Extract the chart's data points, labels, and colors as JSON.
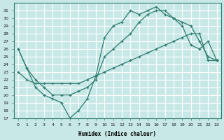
{
  "background_color": "#c8e8e8",
  "grid_color": "#ffffff",
  "line_color": "#2e7d6e",
  "xlabel": "Humidex (Indice chaleur)",
  "xlim": [
    -0.5,
    23.5
  ],
  "ylim": [
    17,
    32
  ],
  "yticks": [
    17,
    18,
    19,
    20,
    21,
    22,
    23,
    24,
    25,
    26,
    27,
    28,
    29,
    30,
    31
  ],
  "xticks": [
    0,
    1,
    2,
    3,
    4,
    5,
    6,
    7,
    8,
    9,
    10,
    11,
    12,
    13,
    14,
    15,
    16,
    17,
    18,
    19,
    20,
    21,
    22,
    23
  ],
  "line1_x": [
    0,
    1,
    2,
    3,
    4,
    5,
    6,
    7,
    8,
    9,
    10,
    11,
    12,
    13,
    14,
    15,
    16,
    17,
    18,
    19,
    20,
    21,
    22,
    23
  ],
  "line1_y": [
    26,
    23.5,
    21,
    20,
    19.5,
    19,
    17,
    18,
    19.5,
    22.5,
    27.5,
    29,
    29.5,
    31,
    30.5,
    31,
    31.5,
    30.5,
    30,
    29.5,
    29,
    27,
    25,
    24.5
  ],
  "line2_x": [
    0,
    1,
    2,
    3,
    4,
    5,
    6,
    7,
    8,
    9,
    10,
    11,
    12,
    13,
    14,
    15,
    16,
    17,
    18,
    19,
    20,
    21,
    22,
    23
  ],
  "line2_y": [
    23.0,
    22.0,
    21.5,
    21.5,
    21.5,
    21.5,
    21.5,
    21.5,
    22.0,
    22.5,
    23.0,
    23.5,
    24.0,
    24.5,
    25.0,
    25.5,
    26.0,
    26.5,
    27.0,
    27.5,
    28.0,
    28.0,
    24.5,
    24.5
  ],
  "line3_x": [
    0,
    1,
    2,
    3,
    4,
    5,
    6,
    7,
    8,
    9,
    10,
    11,
    12,
    13,
    14,
    15,
    16,
    17,
    18,
    19,
    20,
    21,
    22,
    23
  ],
  "line3_y": [
    26,
    23.5,
    22,
    21,
    20,
    20,
    20,
    20.5,
    21,
    22,
    25,
    26,
    27,
    28,
    29.5,
    30.5,
    31,
    31,
    30,
    29,
    26.5,
    26,
    27,
    24.5
  ]
}
